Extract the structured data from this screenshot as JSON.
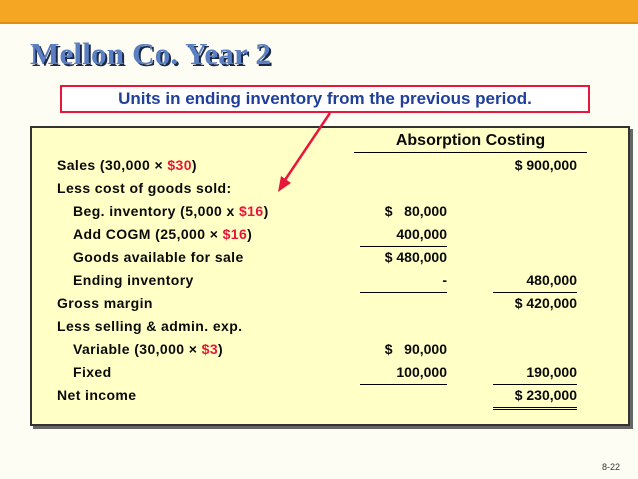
{
  "title": "Mellon Co. Year 2",
  "callout": "Units in ending inventory from the previous period.",
  "statement": {
    "header": "Absorption Costing",
    "rows": [
      {
        "pre": "Sales (30,000 × ",
        "hl": "$30",
        "post": ")",
        "col1": "",
        "col2": "$ 900,000"
      },
      {
        "pre": "Less cost of goods sold:",
        "hl": "",
        "post": "",
        "col1": "",
        "col2": ""
      },
      {
        "pre": "Beg. inventory (5,000 x ",
        "hl": "$16",
        "post": ")",
        "col1": "$   80,000",
        "col2": ""
      },
      {
        "pre": "Add COGM (25,000 × ",
        "hl": "$16",
        "post": ")",
        "col1": "400,000",
        "col2": ""
      },
      {
        "pre": "Goods available for sale",
        "hl": "",
        "post": "",
        "col1": "$ 480,000",
        "col2": ""
      },
      {
        "pre": "Ending inventory",
        "hl": "",
        "post": "",
        "col1": "-",
        "col2": "480,000"
      },
      {
        "pre": "Gross margin",
        "hl": "",
        "post": "",
        "col1": "",
        "col2": "$ 420,000"
      },
      {
        "pre": "Less selling & admin. exp.",
        "hl": "",
        "post": "",
        "col1": "",
        "col2": ""
      },
      {
        "pre": "Variable (30,000 × ",
        "hl": "$3",
        "post": ")",
        "col1": "$   90,000",
        "col2": ""
      },
      {
        "pre": "Fixed",
        "hl": "",
        "post": "",
        "col1": "100,000",
        "col2": "190,000"
      },
      {
        "pre": "Net income",
        "hl": "",
        "post": "",
        "col1": "",
        "col2": "$ 230,000"
      }
    ]
  },
  "page_number": "8-22"
}
